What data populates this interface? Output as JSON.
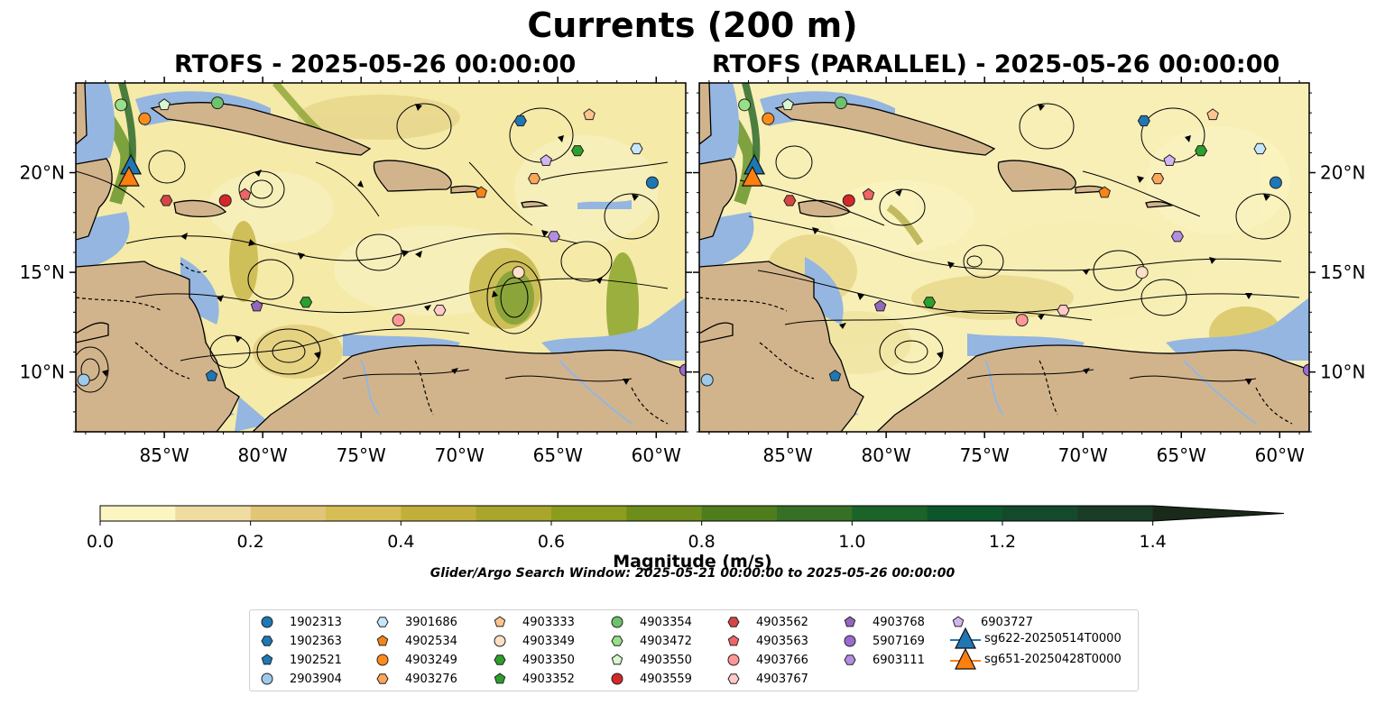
{
  "figure": {
    "title": "Currents (200 m)",
    "left_panel_title": "RTOFS - 2025-05-26 00:00:00",
    "right_panel_title": "RTOFS (PARALLEL) - 2025-05-26 00:00:00",
    "search_window": "Glider/Argo Search Window: 2025-05-21 00:00:00 to 2025-05-26 00:00:00"
  },
  "axes": {
    "lon_labels": [
      "85°W",
      "80°W",
      "75°W",
      "70°W",
      "65°W",
      "60°W"
    ],
    "lat_labels": [
      "20°N",
      "15°N",
      "10°N"
    ],
    "lon_range": [
      -89.5,
      -58.5
    ],
    "lat_range": [
      7,
      24.5
    ]
  },
  "colorbar": {
    "label": "Magnitude (m/s)",
    "ticks": [
      "0.0",
      "0.2",
      "0.4",
      "0.6",
      "0.8",
      "1.0",
      "1.2",
      "1.4"
    ],
    "min": 0.0,
    "max": 1.5,
    "step": 0.1,
    "extend": "max",
    "colors": [
      "#fbf5c2",
      "#efdca0",
      "#e2c677",
      "#d6bd55",
      "#c2af3b",
      "#a9a52d",
      "#8b9c1f",
      "#6e8d1b",
      "#4f7d1d",
      "#367025",
      "#1c6329",
      "#0d562b",
      "#144a2c",
      "#1a3b25",
      "#1a2a1a"
    ]
  },
  "colors": {
    "land": "#d2b48c",
    "shallow_water": "#94b6e0",
    "ocean_low": "#fbf5c2"
  },
  "legend": {
    "columns": [
      [
        {
          "label": "1902313",
          "marker": "circle",
          "color": "#1f77b4"
        },
        {
          "label": "1902363",
          "marker": "hexagon",
          "color": "#1f77b4"
        },
        {
          "label": "1902521",
          "marker": "pentagon",
          "color": "#1f77b4"
        },
        {
          "label": "2903904",
          "marker": "circle",
          "color": "#9ecae9"
        }
      ],
      [
        {
          "label": "3901686",
          "marker": "hexagon",
          "color": "#c6e6fb"
        },
        {
          "label": "4902534",
          "marker": "pentagon",
          "color": "#f58518"
        },
        {
          "label": "4903249",
          "marker": "circle",
          "color": "#ff8c1a"
        },
        {
          "label": "4903276",
          "marker": "hexagon",
          "color": "#ffa658"
        }
      ],
      [
        {
          "label": "4903333",
          "marker": "pentagon",
          "color": "#fdc48e"
        },
        {
          "label": "4903349",
          "marker": "circle",
          "color": "#fddfc4"
        },
        {
          "label": "4903350",
          "marker": "hexagon",
          "color": "#2ca02c"
        },
        {
          "label": "4903352",
          "marker": "pentagon",
          "color": "#2ca02c"
        }
      ],
      [
        {
          "label": "4903354",
          "marker": "circle",
          "color": "#6cc36c"
        },
        {
          "label": "4903472",
          "marker": "hexagon",
          "color": "#98df8a"
        },
        {
          "label": "4903550",
          "marker": "pentagon",
          "color": "#d9f7cf"
        },
        {
          "label": "4903559",
          "marker": "circle",
          "color": "#d62728"
        }
      ],
      [
        {
          "label": "4903562",
          "marker": "hexagon",
          "color": "#d64545"
        },
        {
          "label": "4903563",
          "marker": "pentagon",
          "color": "#f06466"
        },
        {
          "label": "4903766",
          "marker": "circle",
          "color": "#ff9896"
        },
        {
          "label": "4903767",
          "marker": "hexagon",
          "color": "#ffc9c8"
        }
      ],
      [
        {
          "label": "4903768",
          "marker": "pentagon",
          "color": "#9467bd"
        },
        {
          "label": "5907169",
          "marker": "circle",
          "color": "#9b6bd0"
        },
        {
          "label": "6903111",
          "marker": "hexagon",
          "color": "#b38ee0"
        }
      ],
      [
        {
          "label": "6903727",
          "marker": "pentagon",
          "color": "#d3b5f0"
        },
        {
          "label": "sg622-20250514T0000",
          "marker": "triangle",
          "color": "#1f77b4"
        },
        {
          "label": "sg651-20250428T0000",
          "marker": "triangle",
          "color": "#ff7f0e"
        }
      ]
    ]
  },
  "floats": [
    {
      "lon": -87.2,
      "lat": 23.4,
      "marker": "circle",
      "color": "#98df8a"
    },
    {
      "lon": -85.0,
      "lat": 23.4,
      "marker": "pentagon",
      "color": "#d9f7cf"
    },
    {
      "lon": -82.3,
      "lat": 23.5,
      "marker": "circle",
      "color": "#6cc36c"
    },
    {
      "lon": -86.0,
      "lat": 22.7,
      "marker": "circle",
      "color": "#ff8c1a"
    },
    {
      "lon": -66.9,
      "lat": 22.6,
      "marker": "hexagon",
      "color": "#1f77b4"
    },
    {
      "lon": -63.4,
      "lat": 22.9,
      "marker": "pentagon",
      "color": "#fdc48e"
    },
    {
      "lon": -61.0,
      "lat": 21.2,
      "marker": "hexagon",
      "color": "#c6e6fb"
    },
    {
      "lon": -64.0,
      "lat": 21.1,
      "marker": "hexagon",
      "color": "#2ca02c"
    },
    {
      "lon": -65.6,
      "lat": 20.6,
      "marker": "pentagon",
      "color": "#d3b5f0"
    },
    {
      "lon": -66.2,
      "lat": 19.7,
      "marker": "hexagon",
      "color": "#ffa658"
    },
    {
      "lon": -60.2,
      "lat": 19.5,
      "marker": "circle",
      "color": "#1f77b4"
    },
    {
      "lon": -68.9,
      "lat": 19.0,
      "marker": "pentagon",
      "color": "#f58518"
    },
    {
      "lon": -84.9,
      "lat": 18.6,
      "marker": "hexagon",
      "color": "#d64545"
    },
    {
      "lon": -81.9,
      "lat": 18.6,
      "marker": "circle",
      "color": "#d62728"
    },
    {
      "lon": -80.9,
      "lat": 18.9,
      "marker": "pentagon",
      "color": "#f06466"
    },
    {
      "lon": -65.2,
      "lat": 16.8,
      "marker": "hexagon",
      "color": "#b38ee0"
    },
    {
      "lon": -67.0,
      "lat": 15.0,
      "marker": "circle",
      "color": "#fddfc4"
    },
    {
      "lon": -77.8,
      "lat": 13.5,
      "marker": "hexagon",
      "color": "#2ca02c"
    },
    {
      "lon": -80.3,
      "lat": 13.3,
      "marker": "pentagon",
      "color": "#9467bd"
    },
    {
      "lon": -71.0,
      "lat": 13.1,
      "marker": "hexagon",
      "color": "#ffc9c8"
    },
    {
      "lon": -73.1,
      "lat": 12.6,
      "marker": "circle",
      "color": "#ff9896"
    },
    {
      "lon": -82.6,
      "lat": 9.8,
      "marker": "pentagon",
      "color": "#1f77b4"
    },
    {
      "lon": -89.1,
      "lat": 9.6,
      "marker": "circle",
      "color": "#9ecae9"
    },
    {
      "lon": -58.5,
      "lat": 10.1,
      "marker": "circle",
      "color": "#9b6bd0"
    }
  ],
  "gliders": [
    {
      "lon": -86.7,
      "lat": 20.3,
      "marker": "triangle",
      "color": "#1f77b4"
    },
    {
      "lon": -86.8,
      "lat": 19.7,
      "marker": "triangle",
      "color": "#ff7f0e"
    }
  ]
}
